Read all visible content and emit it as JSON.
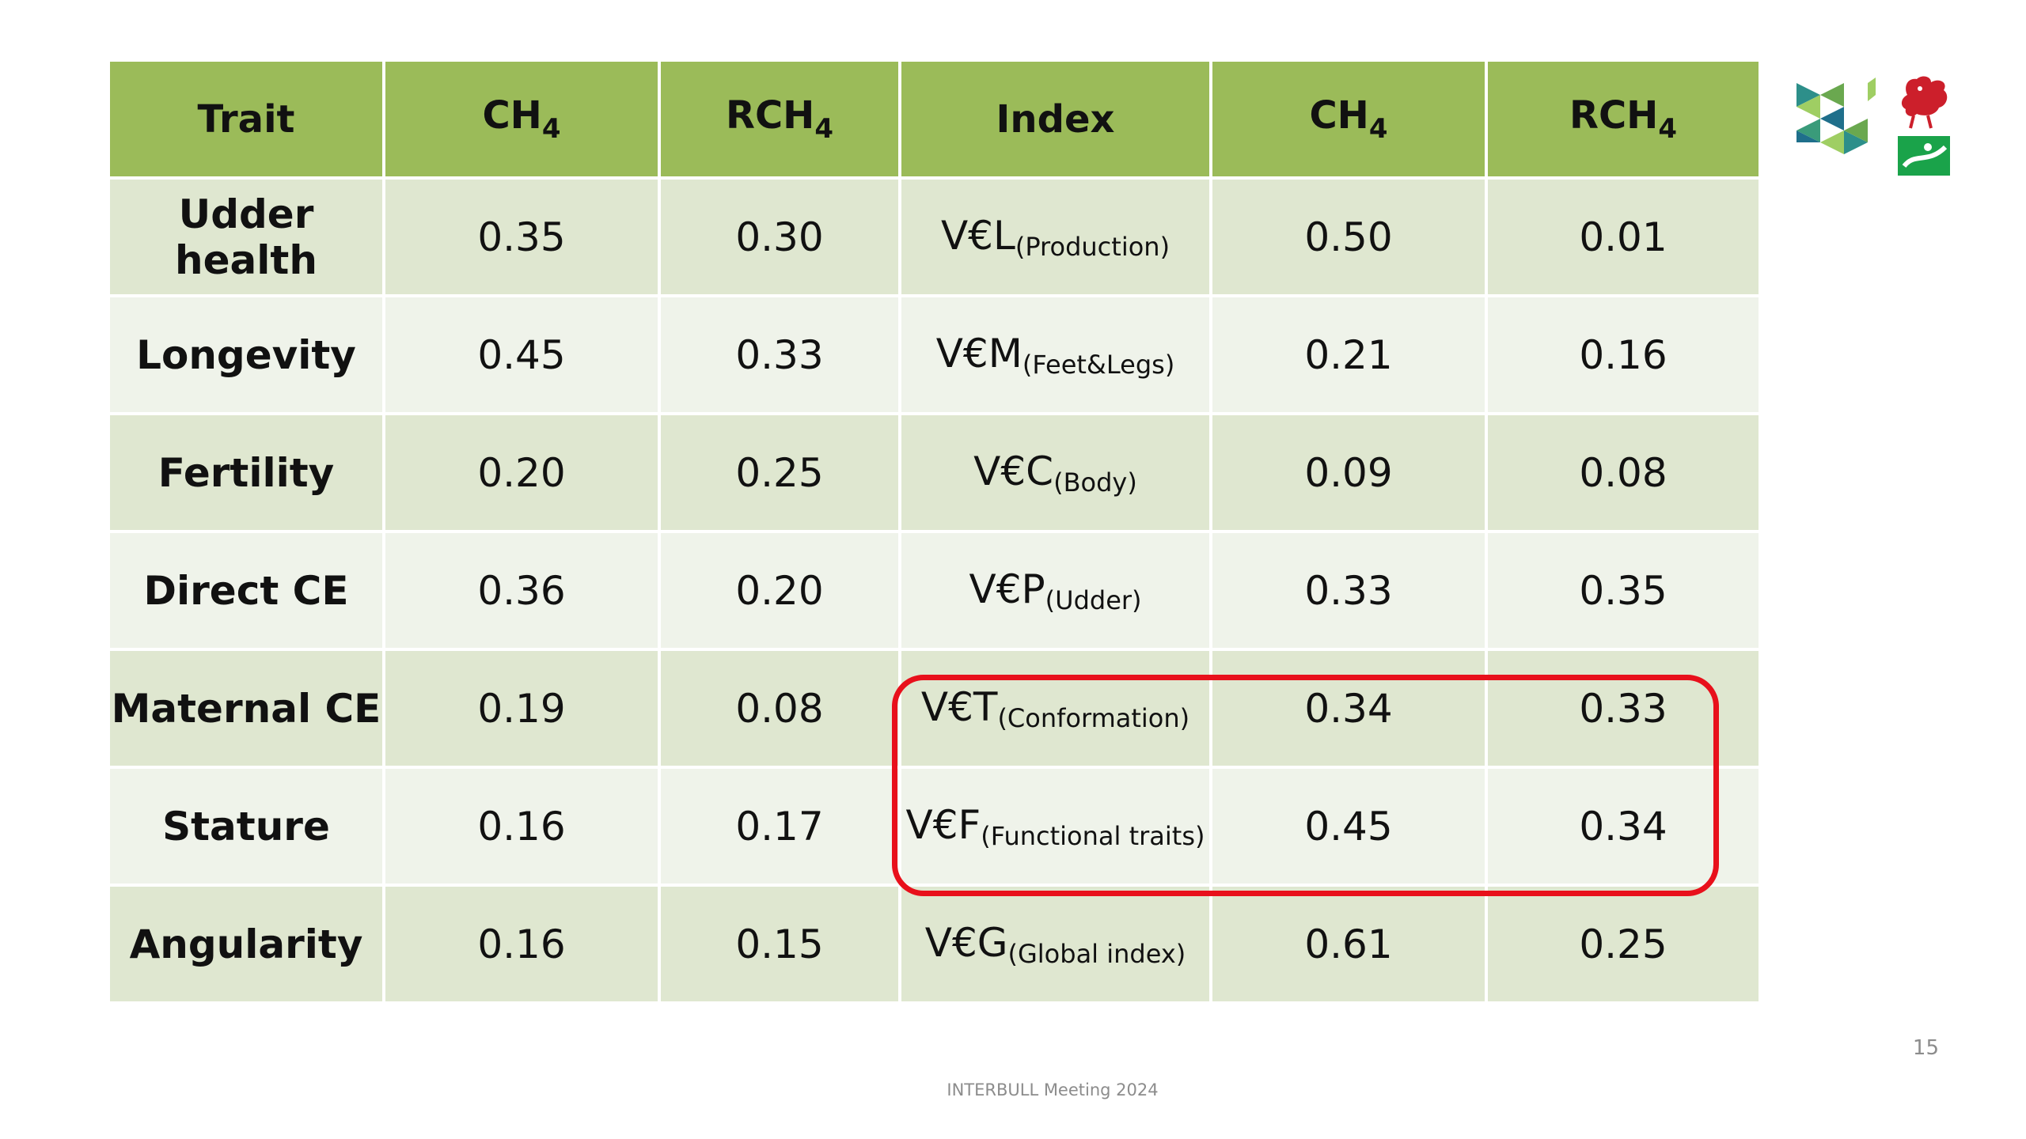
{
  "table": {
    "headers": [
      {
        "main": "Trait",
        "sub": ""
      },
      {
        "main": "CH",
        "sub": "4"
      },
      {
        "main": "RCH",
        "sub": "4"
      },
      {
        "main": "Index",
        "sub": ""
      },
      {
        "main": "CH",
        "sub": "4"
      },
      {
        "main": "RCH",
        "sub": "4"
      }
    ],
    "rows": [
      {
        "trait": "Udder health",
        "ch4": "0.35",
        "rch4": "0.30",
        "index_main": "V€L",
        "index_sub": "(Production)",
        "index_ch4": "0.50",
        "index_rch4": "0.01"
      },
      {
        "trait": "Longevity",
        "ch4": "0.45",
        "rch4": "0.33",
        "index_main": "V€M",
        "index_sub": "(Feet&Legs)",
        "index_ch4": "0.21",
        "index_rch4": "0.16"
      },
      {
        "trait": "Fertility",
        "ch4": "0.20",
        "rch4": "0.25",
        "index_main": "V€C",
        "index_sub": "(Body)",
        "index_ch4": "0.09",
        "index_rch4": "0.08"
      },
      {
        "trait": "Direct CE",
        "ch4": "0.36",
        "rch4": "0.20",
        "index_main": "V€P",
        "index_sub": "(Udder)",
        "index_ch4": "0.33",
        "index_rch4": "0.35"
      },
      {
        "trait": "Maternal CE",
        "ch4": "0.19",
        "rch4": "0.08",
        "index_main": "V€T",
        "index_sub": "(Conformation)",
        "index_ch4": "0.34",
        "index_rch4": "0.33"
      },
      {
        "trait": "Stature",
        "ch4": "0.16",
        "rch4": "0.17",
        "index_main": "V€F",
        "index_sub": "(Functional traits)",
        "index_ch4": "0.45",
        "index_rch4": "0.34"
      },
      {
        "trait": "Angularity",
        "ch4": "0.16",
        "rch4": "0.15",
        "index_main": "V€G",
        "index_sub": "(Global index)",
        "index_ch4": "0.61",
        "index_rch4": "0.25"
      }
    ]
  },
  "highlight": {
    "color": "#e8101b"
  },
  "colors": {
    "header_bg": "#9bbb59",
    "row_odd_bg": "#dfe7d0",
    "row_even_bg": "#eff3ea"
  },
  "logos": [
    "geometric-cube-logo",
    "walloon-rooster-logo",
    "agriculture-emblem-logo"
  ],
  "footer": {
    "text": "INTERBULL Meeting 2024"
  },
  "page_number": "15"
}
